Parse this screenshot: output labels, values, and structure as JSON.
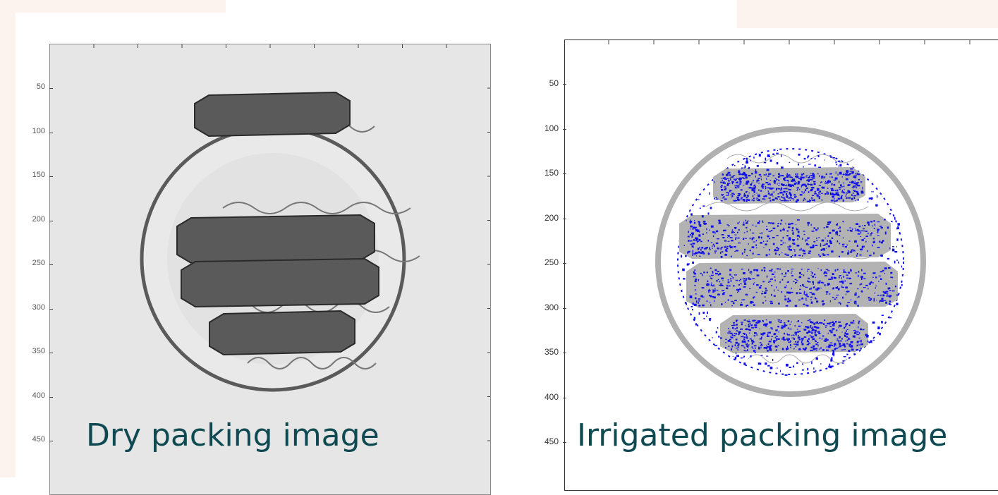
{
  "left_image": {
    "caption": "Dry packing image",
    "y_ticks": [
      "50",
      "100",
      "150",
      "200",
      "250",
      "300",
      "350",
      "400",
      "450"
    ]
  },
  "right_image": {
    "caption": "Irrigated packing image",
    "y_ticks": [
      "50",
      "100",
      "150",
      "200",
      "250",
      "300",
      "350",
      "400",
      "450"
    ]
  },
  "colors": {
    "caption": "#0f4a52",
    "liquid": "#1010e8",
    "packing_dark": "#5a5a5a",
    "packing_gray": "#b3b3b3"
  }
}
